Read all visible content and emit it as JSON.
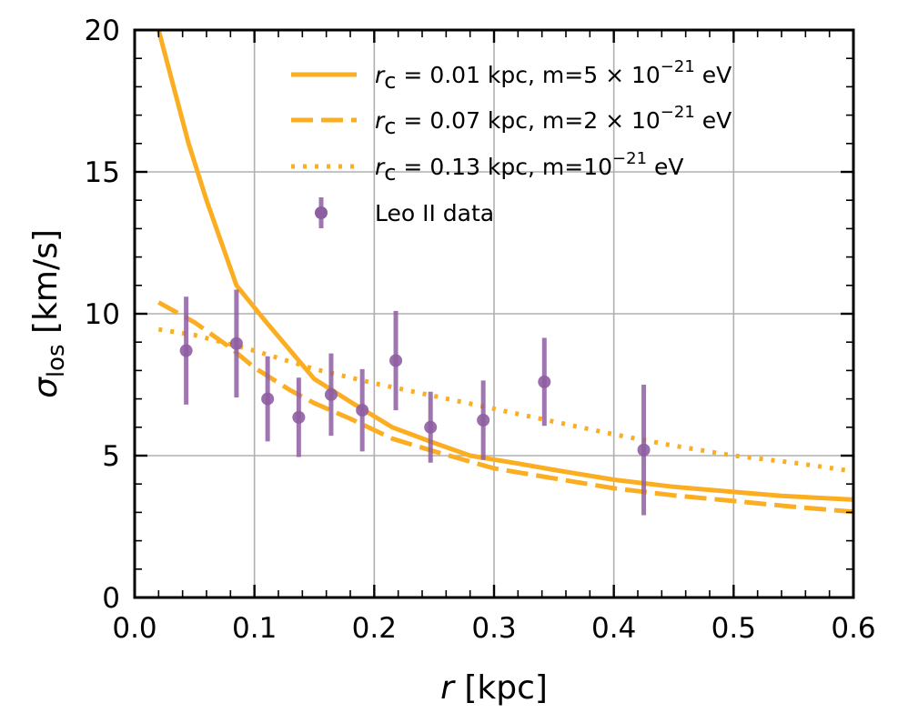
{
  "chart_data": {
    "type": "line",
    "title": "",
    "xlabel": {
      "var": "r",
      "unit": " [kpc]"
    },
    "ylabel": {
      "var": "σ",
      "sub": "los",
      "unit": " [km/s]"
    },
    "xlim": [
      0.0,
      0.6
    ],
    "ylim": [
      0,
      20
    ],
    "xticks": [
      0.0,
      0.1,
      0.2,
      0.3,
      0.4,
      0.5,
      0.6
    ],
    "xtick_labels": [
      "0.0",
      "0.1",
      "0.2",
      "0.3",
      "0.4",
      "0.5",
      "0.6"
    ],
    "yticks": [
      0,
      5,
      10,
      15,
      20
    ],
    "ytick_labels": [
      "0",
      "5",
      "10",
      "15",
      "20"
    ],
    "grid": true,
    "legend_position": "top-right",
    "series": [
      {
        "name": "rc = 0.01 kpc, m=5×10^-21 eV",
        "label": {
          "var": "r",
          "sub": "c",
          "pre": " =  0.01 kpc, m=5 × 10",
          "sup": "−21",
          "post": " eV"
        },
        "color": "#fbae22",
        "style": "solid",
        "x": [
          0.02,
          0.045,
          0.06,
          0.085,
          0.11,
          0.13,
          0.15,
          0.18,
          0.215,
          0.25,
          0.28,
          0.32,
          0.35,
          0.4,
          0.45,
          0.5,
          0.54,
          0.6
        ],
        "y": [
          20.0,
          16.0,
          14.0,
          11.0,
          9.7,
          8.7,
          7.7,
          6.9,
          6.0,
          5.45,
          5.0,
          4.72,
          4.5,
          4.15,
          3.9,
          3.72,
          3.58,
          3.45
        ]
      },
      {
        "name": "rc = 0.07 kpc, m=2×10^-21 eV",
        "label": {
          "var": "r",
          "sub": "c",
          "pre": " =  0.07 kpc, m=2 × 10",
          "sup": "−21",
          "post": " eV"
        },
        "color": "#fbae22",
        "style": "dashed",
        "x": [
          0.02,
          0.05,
          0.08,
          0.1,
          0.13,
          0.15,
          0.18,
          0.215,
          0.25,
          0.3,
          0.35,
          0.4,
          0.45,
          0.5,
          0.55,
          0.6
        ],
        "y": [
          10.4,
          9.7,
          8.8,
          8.1,
          7.3,
          6.85,
          6.3,
          5.6,
          5.15,
          4.55,
          4.2,
          3.85,
          3.6,
          3.4,
          3.2,
          3.02
        ]
      },
      {
        "name": "rc = 0.13 kpc, m=10^-21 eV",
        "label": {
          "var": "r",
          "sub": "c",
          "pre": " =  0.13 kpc, m=10",
          "sup": "−21",
          "post": " eV"
        },
        "color": "#fbae22",
        "style": "dotted",
        "x": [
          0.02,
          0.05,
          0.1,
          0.15,
          0.2,
          0.25,
          0.3,
          0.35,
          0.4,
          0.45,
          0.5,
          0.55,
          0.6
        ],
        "y": [
          9.45,
          9.25,
          8.7,
          8.05,
          7.55,
          7.1,
          6.65,
          6.2,
          5.75,
          5.35,
          5.0,
          4.75,
          4.45
        ]
      },
      {
        "name": "Leo II data",
        "label": {
          "text": "Leo II data"
        },
        "color": "#8e5ea2",
        "style": "errorbar",
        "x": [
          0.043,
          0.085,
          0.111,
          0.137,
          0.164,
          0.19,
          0.218,
          0.247,
          0.291,
          0.342,
          0.425
        ],
        "y": [
          8.7,
          8.95,
          7.0,
          6.35,
          7.15,
          6.6,
          8.35,
          6.0,
          6.25,
          7.6,
          5.2
        ],
        "err": [
          1.9,
          1.9,
          1.5,
          1.4,
          1.45,
          1.45,
          1.75,
          1.25,
          1.4,
          1.55,
          2.3
        ]
      }
    ]
  }
}
